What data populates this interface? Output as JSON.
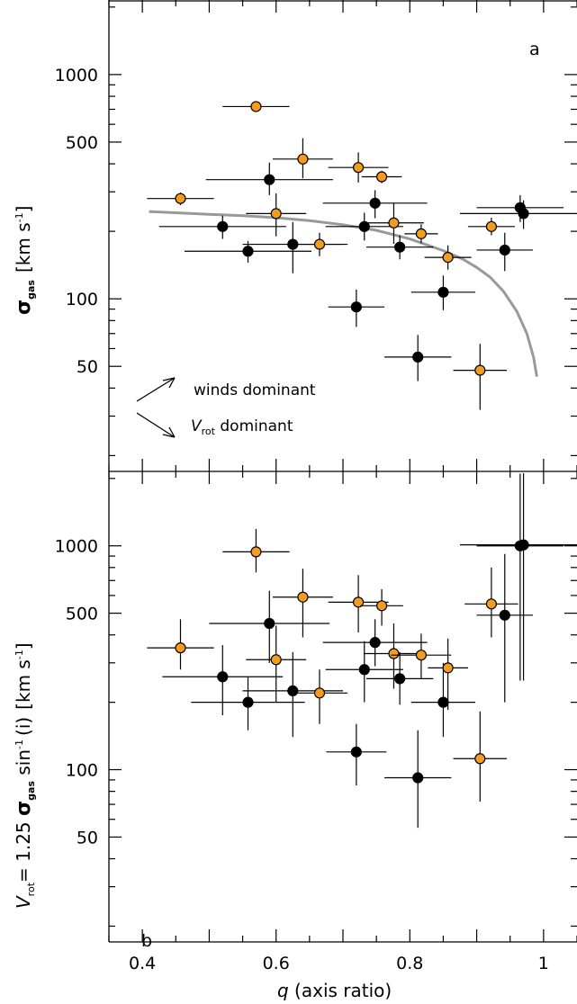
{
  "chart_data": [
    {
      "type": "scatter",
      "panel_label": "a",
      "ylabel_symbol": "σ",
      "ylabel_sub": "gas",
      "ylabel_unit": "[km s",
      "ylabel_unit_sup": "-1",
      "ylabel_unit_close": "]",
      "yscale": "log",
      "xlim": [
        0.35,
        1.05
      ],
      "ylim": [
        17,
        2150
      ],
      "yticks": [
        50,
        100,
        500,
        1000
      ],
      "ytick_labels": [
        "50",
        "100",
        "500",
        "1000"
      ],
      "series": [
        {
          "color": "#000000",
          "points": [
            {
              "x": 0.52,
              "y": 210,
              "xerr": 0.095,
              "yerr_lo": 25,
              "yerr_hi": 25
            },
            {
              "x": 0.558,
              "y": 163,
              "xerr": 0.095,
              "yerr_lo": 18,
              "yerr_hi": 18
            },
            {
              "x": 0.59,
              "y": 340,
              "xerr": 0.095,
              "yerr_lo": 50,
              "yerr_hi": 65
            },
            {
              "x": 0.625,
              "y": 175,
              "xerr": 0.075,
              "yerr_lo": 45,
              "yerr_hi": 45
            },
            {
              "x": 0.72,
              "y": 92,
              "xerr": 0.042,
              "yerr_lo": 17,
              "yerr_hi": 18
            },
            {
              "x": 0.732,
              "y": 210,
              "xerr": 0.058,
              "yerr_lo": 28,
              "yerr_hi": 32
            },
            {
              "x": 0.748,
              "y": 267,
              "xerr": 0.078,
              "yerr_lo": 38,
              "yerr_hi": 38
            },
            {
              "x": 0.785,
              "y": 170,
              "xerr": 0.05,
              "yerr_lo": 20,
              "yerr_hi": 22
            },
            {
              "x": 0.812,
              "y": 55,
              "xerr": 0.05,
              "yerr_lo": 12,
              "yerr_hi": 14
            },
            {
              "x": 0.85,
              "y": 107,
              "xerr": 0.048,
              "yerr_lo": 18,
              "yerr_hi": 20
            },
            {
              "x": 0.942,
              "y": 165,
              "xerr": 0.042,
              "yerr_lo": 32,
              "yerr_hi": 32
            },
            {
              "x": 0.965,
              "y": 255,
              "xerr": 0.065,
              "yerr_lo": 35,
              "yerr_hi": 35
            },
            {
              "x": 0.97,
              "y": 240,
              "xerr": 0.095,
              "yerr_lo": 35,
              "yerr_hi": 35
            }
          ]
        },
        {
          "color": "#f39c1f",
          "points": [
            {
              "x": 0.457,
              "y": 280,
              "xerr": 0.05,
              "yerr_lo": 18,
              "yerr_hi": 18
            },
            {
              "x": 0.57,
              "y": 720,
              "xerr": 0.05,
              "yerr_lo": 30,
              "yerr_hi": 30
            },
            {
              "x": 0.6,
              "y": 240,
              "xerr": 0.045,
              "yerr_lo": 50,
              "yerr_hi": 55
            },
            {
              "x": 0.64,
              "y": 420,
              "xerr": 0.045,
              "yerr_lo": 75,
              "yerr_hi": 100
            },
            {
              "x": 0.665,
              "y": 175,
              "xerr": 0.042,
              "yerr_lo": 20,
              "yerr_hi": 22
            },
            {
              "x": 0.723,
              "y": 385,
              "xerr": 0.045,
              "yerr_lo": 55,
              "yerr_hi": 65
            },
            {
              "x": 0.758,
              "y": 350,
              "xerr": 0.03,
              "yerr_lo": 22,
              "yerr_hi": 22
            },
            {
              "x": 0.776,
              "y": 218,
              "xerr": 0.045,
              "yerr_lo": 42,
              "yerr_hi": 48
            },
            {
              "x": 0.817,
              "y": 195,
              "xerr": 0.025,
              "yerr_lo": 18,
              "yerr_hi": 20
            },
            {
              "x": 0.857,
              "y": 153,
              "xerr": 0.035,
              "yerr_lo": 18,
              "yerr_hi": 20
            },
            {
              "x": 0.905,
              "y": 48,
              "xerr": 0.04,
              "yerr_lo": 16,
              "yerr_hi": 15
            },
            {
              "x": 0.922,
              "y": 210,
              "xerr": 0.035,
              "yerr_lo": 18,
              "yerr_hi": 20
            }
          ]
        }
      ],
      "curve": {
        "color": "#999999",
        "x": [
          0.41,
          0.45,
          0.5,
          0.55,
          0.6,
          0.65,
          0.7,
          0.75,
          0.8,
          0.85,
          0.88,
          0.9,
          0.92,
          0.94,
          0.96,
          0.975,
          0.985,
          0.99
        ],
        "y": [
          245,
          242,
          238,
          235,
          230,
          223,
          214,
          202,
          185,
          164,
          150,
          138,
          125,
          108,
          88,
          70,
          55,
          45
        ]
      },
      "annotations": [
        "winds dominant",
        "V",
        "rot",
        " dominant"
      ]
    },
    {
      "type": "scatter",
      "panel_label": "b",
      "ylabel_v": "V",
      "ylabel_v_sub": "rot",
      "ylabel_eq": "= 1.25 ",
      "ylabel_sigma": "σ",
      "ylabel_sigma_sub": "gas",
      "ylabel_sin": " sin",
      "ylabel_sin_sup": "-1",
      "ylabel_i": "(i)",
      "ylabel_unit": "[km s",
      "ylabel_unit_sup": "-1",
      "ylabel_unit_close": "]",
      "yscale": "log",
      "xlim": [
        0.35,
        1.05
      ],
      "ylim": [
        17,
        2150
      ],
      "yticks": [
        50,
        100,
        500,
        1000
      ],
      "ytick_labels": [
        "50",
        "100",
        "500",
        "1000"
      ],
      "xticks": [
        0.4,
        0.6,
        0.8,
        1.0
      ],
      "xtick_labels": [
        "0.4",
        "0.6",
        "0.8",
        "1"
      ],
      "xlabel_q": "q",
      "xlabel_rest": " (axis ratio)",
      "series": [
        {
          "color": "#000000",
          "points": [
            {
              "x": 0.52,
              "y": 260,
              "xerr": 0.09,
              "yerr_lo": 85,
              "yerr_hi": 100
            },
            {
              "x": 0.558,
              "y": 200,
              "xerr": 0.085,
              "yerr_lo": 50,
              "yerr_hi": 60
            },
            {
              "x": 0.59,
              "y": 450,
              "xerr": 0.09,
              "yerr_lo": 150,
              "yerr_hi": 180
            },
            {
              "x": 0.625,
              "y": 225,
              "xerr": 0.075,
              "yerr_lo": 85,
              "yerr_hi": 110
            },
            {
              "x": 0.72,
              "y": 120,
              "xerr": 0.045,
              "yerr_lo": 35,
              "yerr_hi": 40
            },
            {
              "x": 0.732,
              "y": 280,
              "xerr": 0.058,
              "yerr_lo": 80,
              "yerr_hi": 95
            },
            {
              "x": 0.748,
              "y": 370,
              "xerr": 0.078,
              "yerr_lo": 80,
              "yerr_hi": 100
            },
            {
              "x": 0.785,
              "y": 255,
              "xerr": 0.05,
              "yerr_lo": 60,
              "yerr_hi": 80
            },
            {
              "x": 0.812,
              "y": 92,
              "xerr": 0.05,
              "yerr_lo": 37,
              "yerr_hi": 58
            },
            {
              "x": 0.85,
              "y": 200,
              "xerr": 0.048,
              "yerr_lo": 60,
              "yerr_hi": 100
            },
            {
              "x": 0.942,
              "y": 490,
              "xerr": 0.042,
              "yerr_lo": 290,
              "yerr_hi": 430
            },
            {
              "x": 0.965,
              "y": 1000,
              "xerr": 0.065,
              "yerr_lo": 750,
              "yerr_hi": 1100
            },
            {
              "x": 0.97,
              "y": 1010,
              "xerr": 0.095,
              "yerr_lo": 760,
              "yerr_hi": 1100
            }
          ]
        },
        {
          "color": "#f39c1f",
          "points": [
            {
              "x": 0.457,
              "y": 350,
              "xerr": 0.05,
              "yerr_lo": 70,
              "yerr_hi": 120
            },
            {
              "x": 0.57,
              "y": 940,
              "xerr": 0.05,
              "yerr_lo": 180,
              "yerr_hi": 250
            },
            {
              "x": 0.6,
              "y": 310,
              "xerr": 0.045,
              "yerr_lo": 110,
              "yerr_hi": 130
            },
            {
              "x": 0.64,
              "y": 590,
              "xerr": 0.045,
              "yerr_lo": 200,
              "yerr_hi": 200
            },
            {
              "x": 0.665,
              "y": 220,
              "xerr": 0.042,
              "yerr_lo": 60,
              "yerr_hi": 60
            },
            {
              "x": 0.723,
              "y": 560,
              "xerr": 0.045,
              "yerr_lo": 150,
              "yerr_hi": 180
            },
            {
              "x": 0.758,
              "y": 540,
              "xerr": 0.032,
              "yerr_lo": 100,
              "yerr_hi": 100
            },
            {
              "x": 0.776,
              "y": 330,
              "xerr": 0.045,
              "yerr_lo": 100,
              "yerr_hi": 120
            },
            {
              "x": 0.817,
              "y": 325,
              "xerr": 0.045,
              "yerr_lo": 70,
              "yerr_hi": 80
            },
            {
              "x": 0.857,
              "y": 285,
              "xerr": 0.03,
              "yerr_lo": 100,
              "yerr_hi": 100
            },
            {
              "x": 0.905,
              "y": 112,
              "xerr": 0.04,
              "yerr_lo": 40,
              "yerr_hi": 70
            },
            {
              "x": 0.922,
              "y": 550,
              "xerr": 0.04,
              "yerr_lo": 160,
              "yerr_hi": 250
            }
          ]
        }
      ]
    }
  ]
}
